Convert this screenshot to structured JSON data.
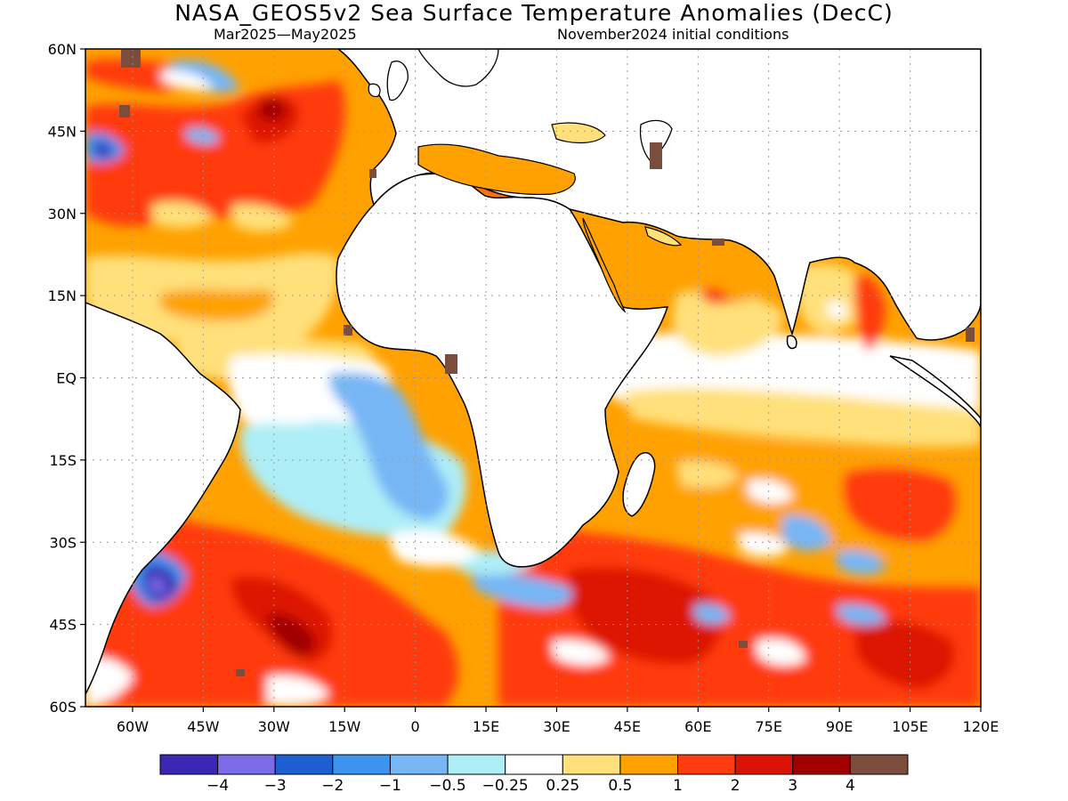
{
  "header": {
    "title": "NASA_GEOS5v2 Sea Surface Temperature Anomalies (DecC)",
    "period": "Mar2025—May2025",
    "init": "November2024 initial conditions"
  },
  "map": {
    "lat_labels": [
      "60N",
      "45N",
      "30N",
      "15N",
      "EQ",
      "15S",
      "30S",
      "45S",
      "60S"
    ],
    "lon_labels": [
      "60W",
      "45W",
      "30W",
      "15W",
      "0",
      "15E",
      "30E",
      "45E",
      "60E",
      "75E",
      "90E",
      "105E",
      "120E"
    ],
    "lon_range": [
      -70,
      120
    ],
    "lat_range": [
      -60,
      60
    ],
    "land_color": "#ffffff",
    "grid": "dotted"
  },
  "colorbar": {
    "colors": [
      "#3a28b4",
      "#7b6be6",
      "#1d5fd0",
      "#3c93f0",
      "#76b6f5",
      "#aeeef7",
      "#ffffff",
      "#ffe07a",
      "#ffa100",
      "#ff3b0f",
      "#dc1205",
      "#a00000",
      "#7a4d3c"
    ],
    "labels": [
      "−4",
      "−3",
      "−2",
      "−1",
      "−0.5",
      "−0.25",
      "0.25",
      "0.5",
      "1",
      "2",
      "3",
      "4"
    ]
  }
}
